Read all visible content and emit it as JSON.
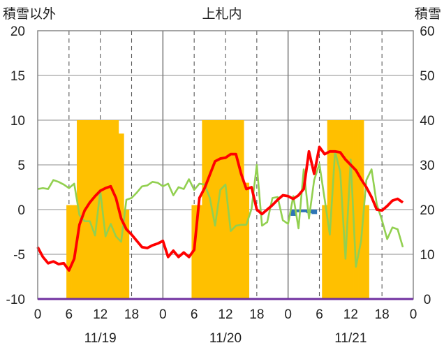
{
  "chart_data": {
    "type": "bar+line",
    "title": "上札内",
    "left_axis_label": "積雪以外",
    "right_axis_label": "積雪",
    "left_ylim": [
      -10,
      20
    ],
    "left_yticks": [
      "20",
      "15",
      "10",
      "5",
      "0",
      "-5",
      "-10"
    ],
    "right_ylim": [
      0,
      60
    ],
    "right_yticks": [
      "60",
      "50",
      "40",
      "30",
      "20",
      "10",
      "0"
    ],
    "x_range_hours": [
      0,
      72
    ],
    "x_tick_hours": [
      0,
      6,
      12,
      18,
      24,
      30,
      36,
      42,
      48,
      54,
      60,
      66,
      72
    ],
    "x_tick_labels": [
      "0",
      "6",
      "12",
      "18",
      "0",
      "6",
      "12",
      "18",
      "0",
      "6",
      "12",
      "18",
      "0"
    ],
    "day_labels": [
      "11/19",
      "11/20",
      "11/21"
    ],
    "grid": "vertical dashed at 6h, solid at day boundaries, horizontal solid",
    "colors": {
      "snow_depth": "#ffc000",
      "temperature": "#ff0000",
      "precipitation": "#92d050",
      "negative_bars": "#2e75b6",
      "baseline": "#7030a0"
    },
    "snow_depth_bars": [
      {
        "h": 6,
        "v": 21
      },
      {
        "h": 7,
        "v": 21
      },
      {
        "h": 8,
        "v": 40
      },
      {
        "h": 9,
        "v": 40
      },
      {
        "h": 10,
        "v": 40
      },
      {
        "h": 11,
        "v": 40
      },
      {
        "h": 12,
        "v": 40
      },
      {
        "h": 13,
        "v": 40
      },
      {
        "h": 14,
        "v": 40
      },
      {
        "h": 15,
        "v": 40
      },
      {
        "h": 16,
        "v": 37
      },
      {
        "h": 17,
        "v": 20
      },
      {
        "h": 30,
        "v": 21
      },
      {
        "h": 31,
        "v": 21
      },
      {
        "h": 32,
        "v": 40
      },
      {
        "h": 33,
        "v": 40
      },
      {
        "h": 34,
        "v": 40
      },
      {
        "h": 35,
        "v": 40
      },
      {
        "h": 36,
        "v": 40
      },
      {
        "h": 37,
        "v": 40
      },
      {
        "h": 38,
        "v": 40
      },
      {
        "h": 39,
        "v": 40
      },
      {
        "h": 40,
        "v": 26
      },
      {
        "h": 55,
        "v": 21
      },
      {
        "h": 56,
        "v": 40
      },
      {
        "h": 57,
        "v": 40
      },
      {
        "h": 58,
        "v": 40
      },
      {
        "h": 59,
        "v": 40
      },
      {
        "h": 60,
        "v": 40
      },
      {
        "h": 61,
        "v": 40
      },
      {
        "h": 62,
        "v": 40
      },
      {
        "h": 63,
        "v": 21
      }
    ],
    "negative_bars": [
      {
        "h": 49,
        "v": -0.7
      },
      {
        "h": 50,
        "v": -0.3
      },
      {
        "h": 51,
        "v": -0.3
      },
      {
        "h": 52,
        "v": -0.4
      },
      {
        "h": 53,
        "v": -0.5
      }
    ],
    "temperature": [
      -4.2,
      -5.3,
      -6.0,
      -5.8,
      -6.1,
      -6.0,
      -6.8,
      -5.5,
      -1.7,
      -0.1,
      0.8,
      1.5,
      2.1,
      2.4,
      2.6,
      1.3,
      -1.0,
      -2.2,
      -2.8,
      -3.5,
      -4.2,
      -4.3,
      -4.0,
      -3.8,
      -3.5,
      -5.3,
      -4.6,
      -5.3,
      -4.8,
      -5.3,
      -4.5,
      1.3,
      2.4,
      3.9,
      5.4,
      5.7,
      5.8,
      6.2,
      6.2,
      4.0,
      2.3,
      2.5,
      0.0,
      -0.5,
      0.0,
      0.5,
      1.1,
      1.6,
      1.5,
      1.2,
      1.6,
      2.3,
      6.5,
      4.0,
      7.0,
      6.2,
      6.5,
      6.5,
      6.4,
      5.6,
      5.0,
      4.4,
      3.4,
      2.5,
      1.4,
      0.0,
      -0.1,
      0.4,
      1.0,
      1.2,
      0.8
    ],
    "precipitation": [
      2.3,
      2.4,
      2.3,
      3.3,
      3.1,
      2.8,
      2.4,
      2.9,
      -0.6,
      -1.3,
      -1.3,
      -2.9,
      2.1,
      -3.0,
      -1.6,
      -3.0,
      -3.6,
      1.1,
      1.3,
      1.9,
      2.6,
      2.7,
      3.1,
      3.0,
      2.6,
      2.9,
      1.6,
      2.5,
      2.3,
      3.4,
      2.2,
      2.9,
      2.8,
      1.3,
      -1.8,
      2.2,
      2.8,
      -2.4,
      -1.8,
      -1.7,
      -1.7,
      0.1,
      5.0,
      -1.8,
      -1.4,
      1.3,
      1.4,
      -1.2,
      -1.6,
      1.5,
      -2.1,
      4.5,
      -1.0,
      3.3,
      5.1,
      1.2,
      -2.8,
      6.5,
      4.2,
      -5.5,
      5.6,
      -6.4,
      -3.5,
      3.3,
      4.5,
      0.6,
      -1.2,
      -3.3,
      -2.0,
      -2.2,
      -4.2
    ]
  }
}
